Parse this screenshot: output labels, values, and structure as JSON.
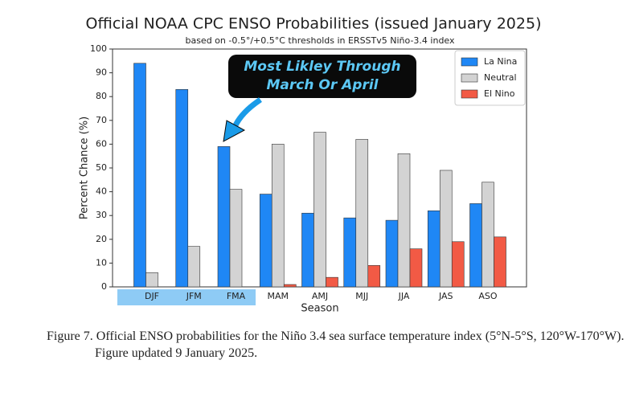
{
  "chart_data": {
    "type": "bar",
    "title": "Official NOAA CPC ENSO Probabilities (issued January 2025)",
    "subtitle": "based on -0.5°/+0.5°C thresholds in ERSSTv5 Niño-3.4 index",
    "xlabel": "Season",
    "ylabel": "Percent Chance (%)",
    "annotation": [
      "Most Likley Through",
      "March Or April"
    ],
    "categories": [
      "DJF",
      "JFM",
      "FMA",
      "MAM",
      "AMJ",
      "MJJ",
      "JJA",
      "JAS",
      "ASO"
    ],
    "series": [
      {
        "name": "La Nina",
        "color": "#1f87f5",
        "values": [
          94,
          83,
          59,
          39,
          31,
          29,
          28,
          32,
          35
        ]
      },
      {
        "name": "Neutral",
        "color": "#d3d3d3",
        "values": [
          6,
          17,
          41,
          60,
          65,
          62,
          56,
          49,
          44
        ]
      },
      {
        "name": "El Nino",
        "color": "#f25a45",
        "values": [
          0,
          0,
          0,
          1,
          4,
          9,
          16,
          19,
          21
        ]
      }
    ],
    "ylim": [
      0,
      100
    ],
    "yticks": [
      0,
      10,
      20,
      30,
      40,
      50,
      60,
      70,
      80,
      90,
      100
    ],
    "legend": "upper right"
  },
  "caption": "Figure 7. Official ENSO probabilities for the Niño 3.4 sea surface temperature index (5°N-5°S, 120°W-170°W). Figure updated 9 January 2025."
}
